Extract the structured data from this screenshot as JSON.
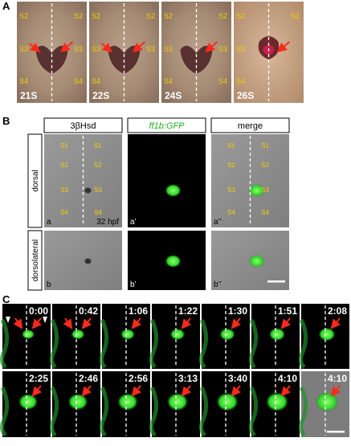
{
  "panel_a": {
    "letter": "A",
    "images": [
      {
        "stage": "21S",
        "left_segments": [
          "S2",
          "S3",
          "S4"
        ],
        "right_segments": [
          "S2",
          "S3",
          "S4"
        ]
      },
      {
        "stage": "22S",
        "left_segments": [
          "S2",
          "S3",
          "S4"
        ],
        "right_segments": [
          "S2",
          "S3"
        ]
      },
      {
        "stage": "24S",
        "left_segments": [
          "S2",
          "S3",
          "S4"
        ],
        "right_segments": [
          "S2",
          "S3",
          "S4"
        ]
      },
      {
        "stage": "26S",
        "left_segments": [
          "S2",
          "S3",
          "S4"
        ],
        "right_segments": [
          "S2"
        ]
      }
    ]
  },
  "panel_b": {
    "letter": "B",
    "columns": [
      "3βHsd",
      "ff1b:GFP",
      "merge"
    ],
    "rows": [
      "dorsal",
      "dorsolateral"
    ],
    "left_segments": [
      "S1",
      "S2",
      "S3",
      "S4"
    ],
    "right_segments": [
      "S1",
      "S2",
      "S3",
      "S4"
    ],
    "stage": "32 hpf",
    "panel_labels": [
      [
        "a",
        "a’",
        "a’’"
      ],
      [
        "b",
        "b’",
        "b’’"
      ]
    ]
  },
  "panel_c": {
    "letter": "C",
    "times": [
      "0:00",
      "0:42",
      "1:06",
      "1:22",
      "1:30",
      "1:51",
      "2:08",
      "2:25",
      "2:46",
      "2:56",
      "3:13",
      "3:40",
      "4:10",
      "4:10"
    ]
  }
}
